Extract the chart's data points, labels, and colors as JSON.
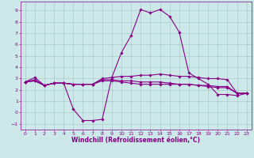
{
  "xlabel": "Windchill (Refroidissement éolien,°C)",
  "background_color": "#cce8e8",
  "grid_color": "#aacccc",
  "line_color": "#880088",
  "x_ticks": [
    0,
    1,
    2,
    3,
    4,
    5,
    6,
    7,
    8,
    9,
    10,
    11,
    12,
    13,
    14,
    15,
    16,
    17,
    18,
    19,
    20,
    21,
    22,
    23
  ],
  "y_ticks": [
    -1,
    0,
    1,
    2,
    3,
    4,
    5,
    6,
    7,
    8,
    9
  ],
  "xlim": [
    -0.5,
    23.5
  ],
  "ylim": [
    -1.5,
    9.8
  ],
  "series": [
    [
      2.7,
      3.1,
      2.4,
      2.6,
      2.6,
      0.3,
      -0.7,
      -0.7,
      -0.6,
      3.1,
      5.3,
      6.8,
      9.1,
      8.8,
      9.1,
      8.5,
      7.1,
      3.5,
      3.0,
      2.5,
      1.6,
      1.6,
      1.5,
      1.7
    ],
    [
      2.7,
      2.9,
      2.4,
      2.6,
      2.6,
      2.5,
      2.5,
      2.5,
      3.0,
      3.1,
      3.2,
      3.2,
      3.3,
      3.3,
      3.4,
      3.3,
      3.2,
      3.2,
      3.1,
      3.0,
      3.0,
      2.9,
      1.7,
      1.7
    ],
    [
      2.7,
      2.8,
      2.4,
      2.6,
      2.6,
      2.5,
      2.5,
      2.5,
      2.9,
      2.9,
      2.8,
      2.8,
      2.7,
      2.7,
      2.7,
      2.6,
      2.5,
      2.5,
      2.4,
      2.3,
      2.2,
      2.2,
      1.7,
      1.7
    ],
    [
      2.7,
      2.8,
      2.4,
      2.6,
      2.6,
      2.5,
      2.5,
      2.5,
      2.8,
      2.8,
      2.7,
      2.6,
      2.5,
      2.5,
      2.5,
      2.5,
      2.5,
      2.5,
      2.4,
      2.4,
      2.3,
      2.3,
      1.7,
      1.7
    ]
  ],
  "marker": "D",
  "markersize": 1.8,
  "linewidth": 0.8,
  "tick_fontsize": 4.5,
  "label_fontsize": 5.5
}
